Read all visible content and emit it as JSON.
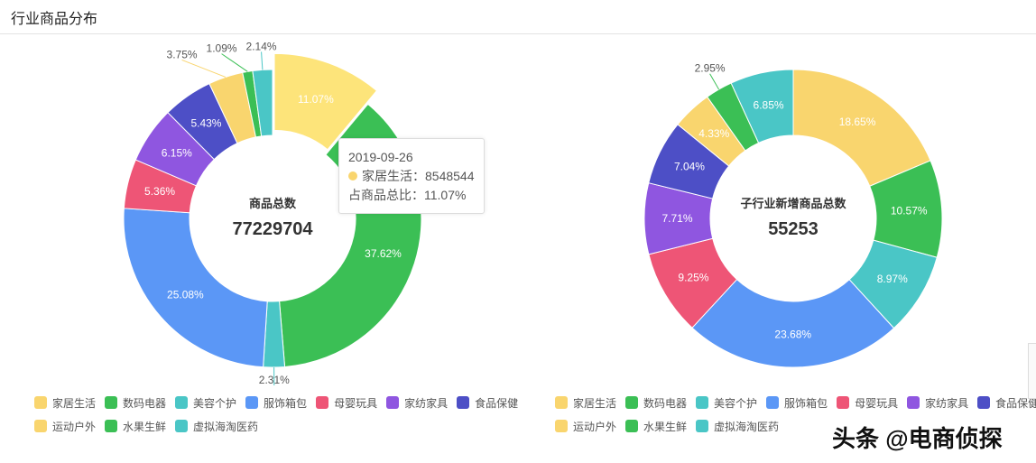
{
  "header": {
    "title": "行业商品分布"
  },
  "colors": [
    "#f9d56e",
    "#3bbf55",
    "#4ac6c6",
    "#5b97f6",
    "#ee5576",
    "#8f56e0",
    "#4d4fc6",
    "#f9d56e",
    "#3bbf55",
    "#4ac6c6"
  ],
  "chart_data": [
    {
      "type": "pie",
      "center_label": "商品总数",
      "center_value": "77229704",
      "categories": [
        "家居生活",
        "数码电器",
        "美容个护",
        "服饰箱包",
        "母婴玩具",
        "家纺家具",
        "食品保健",
        "运动户外",
        "水果生鲜",
        "虚拟海淘医药"
      ],
      "values": [
        11.07,
        37.62,
        2.31,
        25.08,
        5.36,
        6.15,
        5.43,
        3.75,
        1.09,
        2.14
      ],
      "highlighted": "家居生活"
    },
    {
      "type": "pie",
      "center_label": "子行业新增商品总数",
      "center_value": "55253",
      "categories": [
        "家居生活",
        "数码电器",
        "美容个护",
        "服饰箱包",
        "母婴玩具",
        "家纺家具",
        "食品保健",
        "运动户外",
        "水果生鲜",
        "虚拟海淘医药"
      ],
      "values": [
        18.65,
        10.57,
        8.97,
        23.68,
        9.25,
        7.71,
        7.04,
        4.33,
        2.95,
        6.85
      ]
    }
  ],
  "tooltip": {
    "date": "2019-09-26",
    "series": "家居生活：8548544",
    "ratio": "占商品总比：11.07%"
  },
  "watermark": "头条 @电商侦探"
}
